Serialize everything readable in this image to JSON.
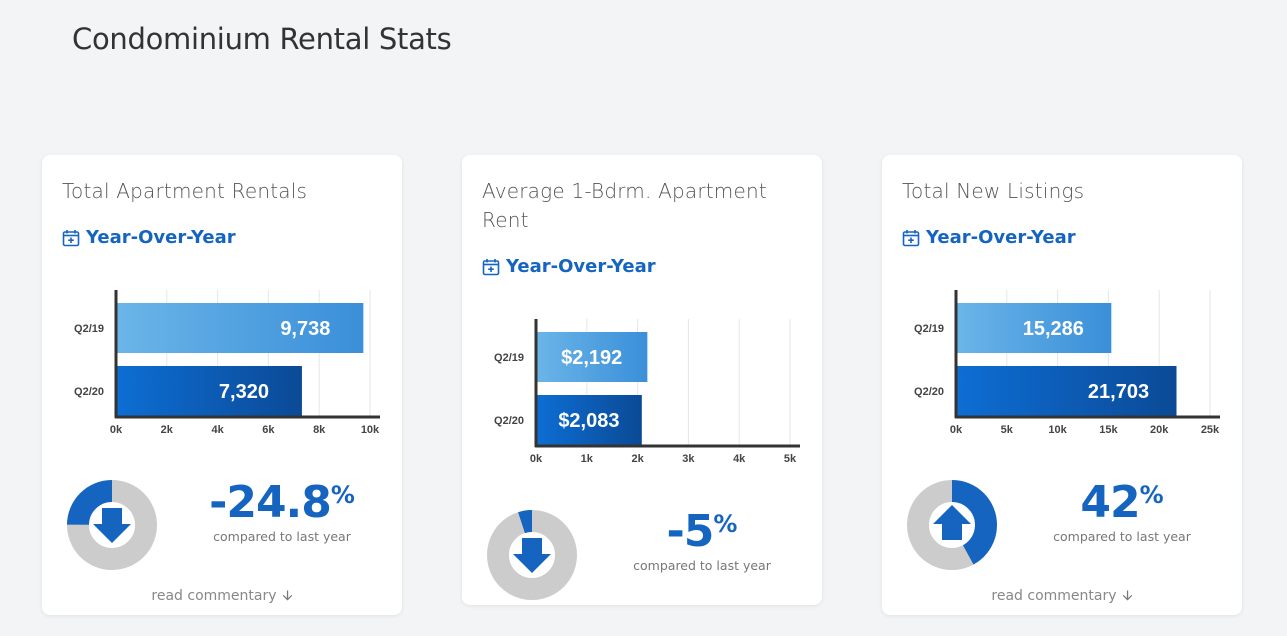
{
  "page": {
    "title": "Condominium Rental Stats"
  },
  "cards": [
    {
      "title": "Total Apartment Rentals",
      "period": "Year-Over-Year",
      "chart_data": {
        "type": "bar",
        "categories": [
          "Q2/19",
          "Q2/20"
        ],
        "values": [
          9738,
          7320
        ],
        "value_labels": [
          "9,738",
          "7,320"
        ],
        "xticks": [
          "0k",
          "2k",
          "4k",
          "6k",
          "8k",
          "10k"
        ],
        "xlim": [
          0,
          10000
        ],
        "grid": true
      },
      "change": {
        "value": "-24.8",
        "unit": "%",
        "caption": "compared to last year",
        "direction": "down",
        "fraction": 0.248
      },
      "read_more": "read commentary"
    },
    {
      "title": "Average 1-Bdrm. Apartment Rent",
      "period": "Year-Over-Year",
      "chart_data": {
        "type": "bar",
        "categories": [
          "Q2/19",
          "Q2/20"
        ],
        "values": [
          2192,
          2083
        ],
        "value_labels": [
          "$2,192",
          "$2,083"
        ],
        "xticks": [
          "0k",
          "1k",
          "2k",
          "3k",
          "4k",
          "5k"
        ],
        "xlim": [
          0,
          5000
        ],
        "grid": true
      },
      "change": {
        "value": "-5",
        "unit": "%",
        "caption": "compared to last year",
        "direction": "down",
        "fraction": 0.05
      },
      "read_more": ""
    },
    {
      "title": "Total New Listings",
      "period": "Year-Over-Year",
      "chart_data": {
        "type": "bar",
        "categories": [
          "Q2/19",
          "Q2/20"
        ],
        "values": [
          15286,
          21703
        ],
        "value_labels": [
          "15,286",
          "21,703"
        ],
        "xticks": [
          "0k",
          "5k",
          "10k",
          "15k",
          "20k",
          "25k"
        ],
        "xlim": [
          0,
          25000
        ],
        "grid": true
      },
      "change": {
        "value": "42",
        "unit": "%",
        "caption": "compared to last year",
        "direction": "up",
        "fraction": 0.42
      },
      "read_more": "read commentary"
    }
  ],
  "colors": {
    "accent": "#1565c0",
    "bar_light_start": "#6bb5e8",
    "bar_light_end": "#3a8fd9",
    "bar_dark_start": "#0d6ed4",
    "bar_dark_end": "#0b4a96",
    "donut_track": "#cccccc",
    "donut_fill": "#1565c0"
  }
}
